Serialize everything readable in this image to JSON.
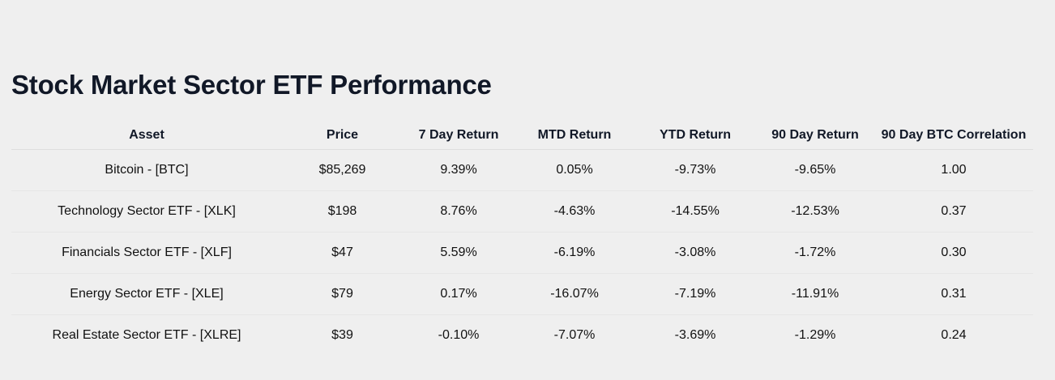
{
  "page": {
    "title": "Stock Market Sector ETF Performance"
  },
  "table": {
    "headers": [
      "Asset",
      "Price",
      "7 Day Return",
      "MTD Return",
      "YTD Return",
      "90 Day Return",
      "90 Day BTC Correlation"
    ],
    "rows": [
      {
        "asset": "Bitcoin - [BTC]",
        "price": "$85,269",
        "d7": "9.39%",
        "mtd": "0.05%",
        "ytd": "-9.73%",
        "d90": "-9.65%",
        "corr": "1.00"
      },
      {
        "asset": "Technology Sector ETF - [XLK]",
        "price": "$198",
        "d7": "8.76%",
        "mtd": "-4.63%",
        "ytd": "-14.55%",
        "d90": "-12.53%",
        "corr": "0.37"
      },
      {
        "asset": "Financials Sector ETF - [XLF]",
        "price": "$47",
        "d7": "5.59%",
        "mtd": "-6.19%",
        "ytd": "-3.08%",
        "d90": "-1.72%",
        "corr": "0.30"
      },
      {
        "asset": "Energy Sector ETF - [XLE]",
        "price": "$79",
        "d7": "0.17%",
        "mtd": "-16.07%",
        "ytd": "-7.19%",
        "d90": "-11.91%",
        "corr": "0.31"
      },
      {
        "asset": "Real Estate Sector ETF - [XLRE]",
        "price": "$39",
        "d7": "-0.10%",
        "mtd": "-7.07%",
        "ytd": "-3.69%",
        "d90": "-1.29%",
        "corr": "0.24"
      }
    ]
  },
  "colors": {
    "background": "#efefef",
    "heading": "#111827",
    "positive": "#168016",
    "negative": "#e01b1b"
  }
}
